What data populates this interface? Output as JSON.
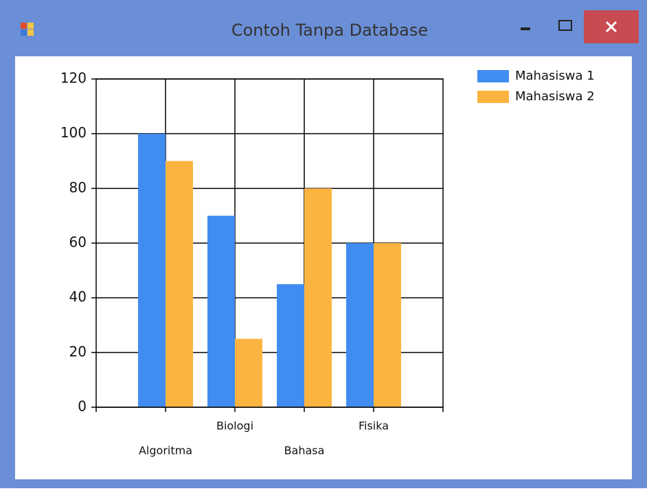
{
  "window": {
    "title": "Contoh Tanpa Database"
  },
  "chart_data": {
    "type": "bar",
    "categories": [
      "Algoritma",
      "Biologi",
      "Bahasa",
      "Fisika"
    ],
    "series": [
      {
        "name": "Mahasiswa 1",
        "color": "#418cf0",
        "values": [
          100,
          70,
          45,
          60
        ]
      },
      {
        "name": "Mahasiswa 2",
        "color": "#fcb441",
        "values": [
          90,
          25,
          80,
          60
        ]
      }
    ],
    "ylim": [
      0,
      120
    ],
    "yticks": [
      0,
      20,
      40,
      60,
      80,
      100,
      120
    ],
    "grid": true,
    "legend": "top-right"
  }
}
